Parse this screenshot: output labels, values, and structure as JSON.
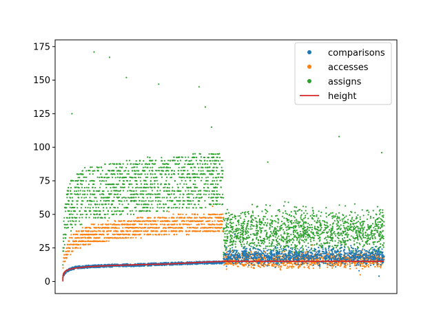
{
  "chart_data": {
    "type": "scatter",
    "title": "",
    "xlabel": "",
    "ylabel": "",
    "ylim": [
      -9,
      180
    ],
    "xlim": [
      -600,
      26000
    ],
    "x_ticks_visible": false,
    "y_ticks": [
      0,
      25,
      50,
      75,
      100,
      125,
      150,
      175
    ],
    "grid": false,
    "legend": {
      "placement": "top-right",
      "entries": [
        {
          "label": "comparisons",
          "marker": "dot"
        },
        {
          "label": "accesses",
          "marker": "dot"
        },
        {
          "label": "assigns",
          "marker": "dot"
        },
        {
          "label": "height",
          "marker": "line"
        }
      ]
    },
    "colors": {
      "comparisons": "#1f77b4",
      "accesses": "#ff7f0e",
      "assigns": "#2ca02c",
      "height": "#d62728"
    },
    "series": [
      {
        "name": "comparisons",
        "segments": [
          {
            "x_range": [
              1,
              12500
            ],
            "trend": "log",
            "y_at": [
              [
                1,
                1
              ],
              [
                100,
                5
              ],
              [
                1000,
                10
              ],
              [
                6000,
                12
              ],
              [
                12500,
                14
              ]
            ],
            "spread": 2
          },
          {
            "x_range": [
              12500,
              25000
            ],
            "trend": "flat",
            "center": 19,
            "spread": 9,
            "outliers": [
              4,
              8,
              35
            ]
          }
        ]
      },
      {
        "name": "accesses",
        "segments": [
          {
            "x_range": [
              1,
              12500
            ],
            "trend": "log",
            "y_at": [
              [
                1,
                2
              ],
              [
                100,
                15
              ],
              [
                1000,
                28
              ],
              [
                6000,
                38
              ],
              [
                12500,
                42
              ]
            ],
            "spread": 14,
            "outliers": [
              52,
              56
            ]
          },
          {
            "x_range": [
              12500,
              25000
            ],
            "trend": "flat",
            "center": 16,
            "spread": 8,
            "outliers": [
              5,
              27
            ]
          }
        ]
      },
      {
        "name": "assigns",
        "segments": [
          {
            "x_range": [
              1,
              12500
            ],
            "trend": "log",
            "y_at": [
              [
                1,
                3
              ],
              [
                100,
                35
              ],
              [
                1000,
                55
              ],
              [
                6000,
                65
              ],
              [
                12500,
                70
              ]
            ],
            "spread": 40,
            "outliers": [
              115,
              125,
              130,
              145,
              147,
              152,
              167,
              171
            ]
          },
          {
            "x_range": [
              12500,
              25000
            ],
            "trend": "flat",
            "center": 37,
            "spread": 25,
            "outliers": [
              89,
              96,
              108
            ]
          }
        ]
      },
      {
        "name": "height",
        "type": "line",
        "points": [
          [
            1,
            0
          ],
          [
            4,
            2
          ],
          [
            16,
            4
          ],
          [
            64,
            6
          ],
          [
            256,
            8
          ],
          [
            1024,
            10
          ],
          [
            4096,
            12
          ],
          [
            8192,
            13
          ],
          [
            12500,
            15
          ],
          [
            12500,
            15
          ],
          [
            25000,
            15
          ]
        ]
      }
    ]
  }
}
